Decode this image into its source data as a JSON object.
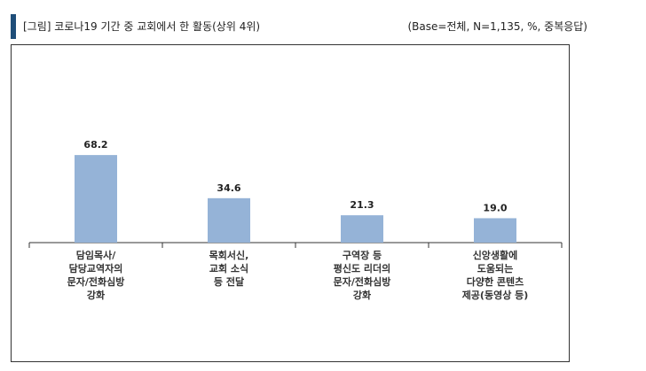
{
  "header": {
    "title": "[그림] 코로나19 기간 중 교회에서 한 활동(상위 4위)",
    "base_note": "(Base=전체, N=1,135, %, 중복응답)"
  },
  "colors": {
    "bar": "#95b3d7",
    "accent": "#1f4e79",
    "axis": "#333333"
  },
  "chart_data": {
    "type": "bar",
    "title": "[그림] 코로나19 기간 중 교회에서 한 활동(상위 4위)",
    "categories": [
      [
        "담임목사/",
        "담당교역자의",
        "문자/전화심방",
        "강화"
      ],
      [
        "목회서신,",
        "교회 소식",
        "등 전달"
      ],
      [
        "구역장 등",
        "평신도 리더의",
        "문자/전화심방",
        "강화"
      ],
      [
        "신앙생활에",
        "도움되는",
        "다양한 콘텐츠",
        "제공(동영상 등)"
      ]
    ],
    "values": [
      68.2,
      34.6,
      21.3,
      19.0
    ],
    "value_labels": [
      "68.2",
      "34.6",
      "21.3",
      "19.0"
    ],
    "ylim": [
      0,
      80
    ],
    "grid": false,
    "legend": "none"
  }
}
